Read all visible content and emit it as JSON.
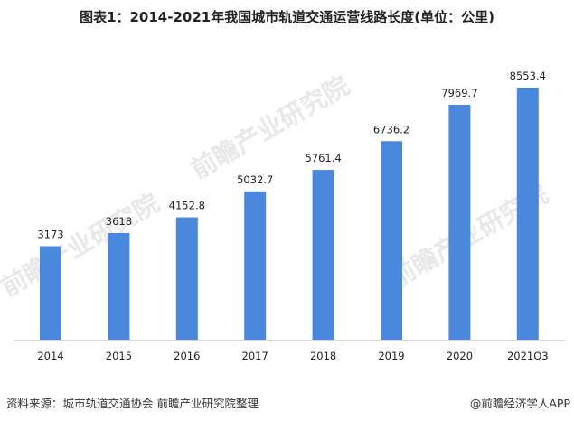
{
  "chart_data": {
    "type": "bar",
    "title": "图表1：2014-2021年我国城市轨道交通运营线路长度(单位：公里)",
    "categories": [
      "2014",
      "2015",
      "2016",
      "2017",
      "2018",
      "2019",
      "2020",
      "2021Q3"
    ],
    "values": [
      3173,
      3618,
      4152.8,
      5032.7,
      5761.4,
      6736.2,
      7969.7,
      8553.4
    ],
    "value_labels": [
      "3173",
      "3618",
      "4152.8",
      "5032.7",
      "5761.4",
      "6736.2",
      "7969.7",
      "8553.4"
    ],
    "xlabel": "",
    "ylabel": "",
    "ylim": [
      0,
      8553.4
    ],
    "grid": false,
    "bar_color": "#4a88dd"
  },
  "footer": {
    "source": "资料来源：城市轨道交通协会 前瞻产业研究院整理",
    "brand": "@前瞻经济学人APP"
  },
  "watermark": "前瞻产业研究院"
}
